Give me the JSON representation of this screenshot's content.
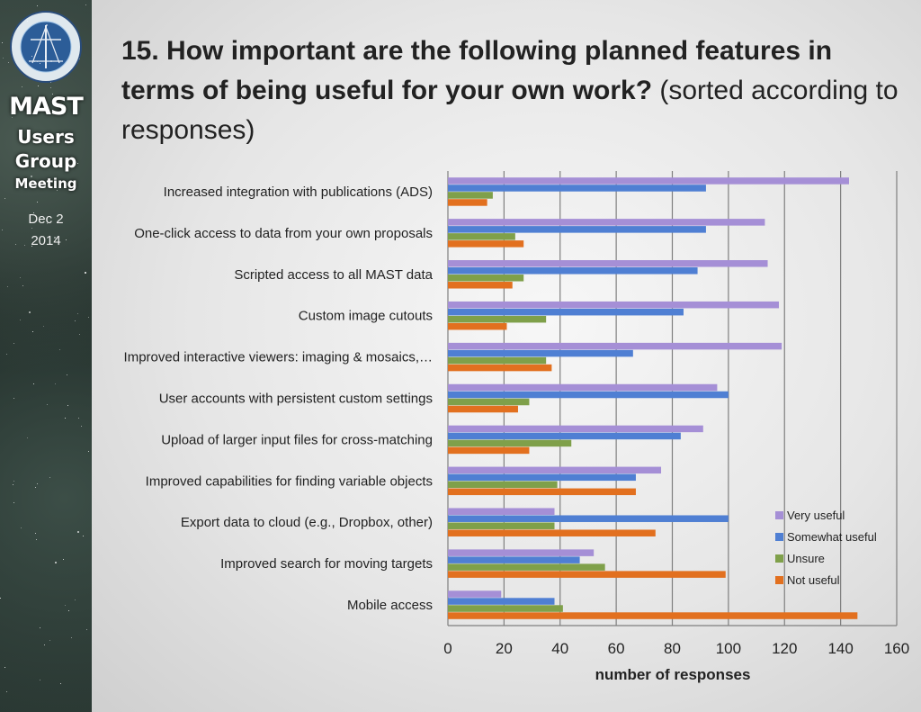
{
  "sidebar": {
    "logo_text": "MIKULSKI ARCHIVE FOR SPACE TELESCOPES",
    "logo_sub": "MAST",
    "line1": "MAST",
    "line2": "Users",
    "line3": "Group",
    "line4": "Meeting",
    "date1": "Dec 2",
    "date2": "2014"
  },
  "title": {
    "bold": "15. How important are the following planned features in terms of being useful for your own work?",
    "normal": " (sorted according to responses)"
  },
  "colors": {
    "very_useful": "#a58fd6",
    "somewhat_useful": "#4f7fd3",
    "unsure": "#7fa04a",
    "not_useful": "#e2701f",
    "grid": "#7f7f7f"
  },
  "chart_data": {
    "type": "bar",
    "orientation": "horizontal",
    "categories": [
      "Increased integration with publications (ADS)",
      "One-click access to data from your own proposals",
      "Scripted access to all MAST data",
      "Custom image cutouts",
      "Improved interactive viewers: imaging & mosaics,…",
      "User accounts with persistent custom settings",
      "Upload of larger input files for cross-matching",
      "Improved capabilities for finding variable objects",
      "Export data to cloud (e.g., Dropbox, other)",
      "Improved search for moving targets",
      "Mobile access"
    ],
    "series": [
      {
        "name": "Very useful",
        "color_key": "very_useful",
        "values": [
          143,
          113,
          114,
          118,
          119,
          96,
          91,
          76,
          38,
          52,
          19
        ]
      },
      {
        "name": "Somewhat useful",
        "color_key": "somewhat_useful",
        "values": [
          92,
          92,
          89,
          84,
          66,
          100,
          83,
          67,
          100,
          47,
          38
        ]
      },
      {
        "name": "Unsure",
        "color_key": "unsure",
        "values": [
          16,
          24,
          27,
          35,
          35,
          29,
          44,
          39,
          38,
          56,
          41
        ]
      },
      {
        "name": "Not useful",
        "color_key": "not_useful",
        "values": [
          14,
          27,
          23,
          21,
          37,
          25,
          29,
          67,
          74,
          99,
          146
        ]
      }
    ],
    "xlim": [
      0,
      160
    ],
    "xticks": [
      0,
      20,
      40,
      60,
      80,
      100,
      120,
      140,
      160
    ],
    "xlabel": "number of responses",
    "ylabel": "",
    "grid": "vertical",
    "legend": "right"
  }
}
